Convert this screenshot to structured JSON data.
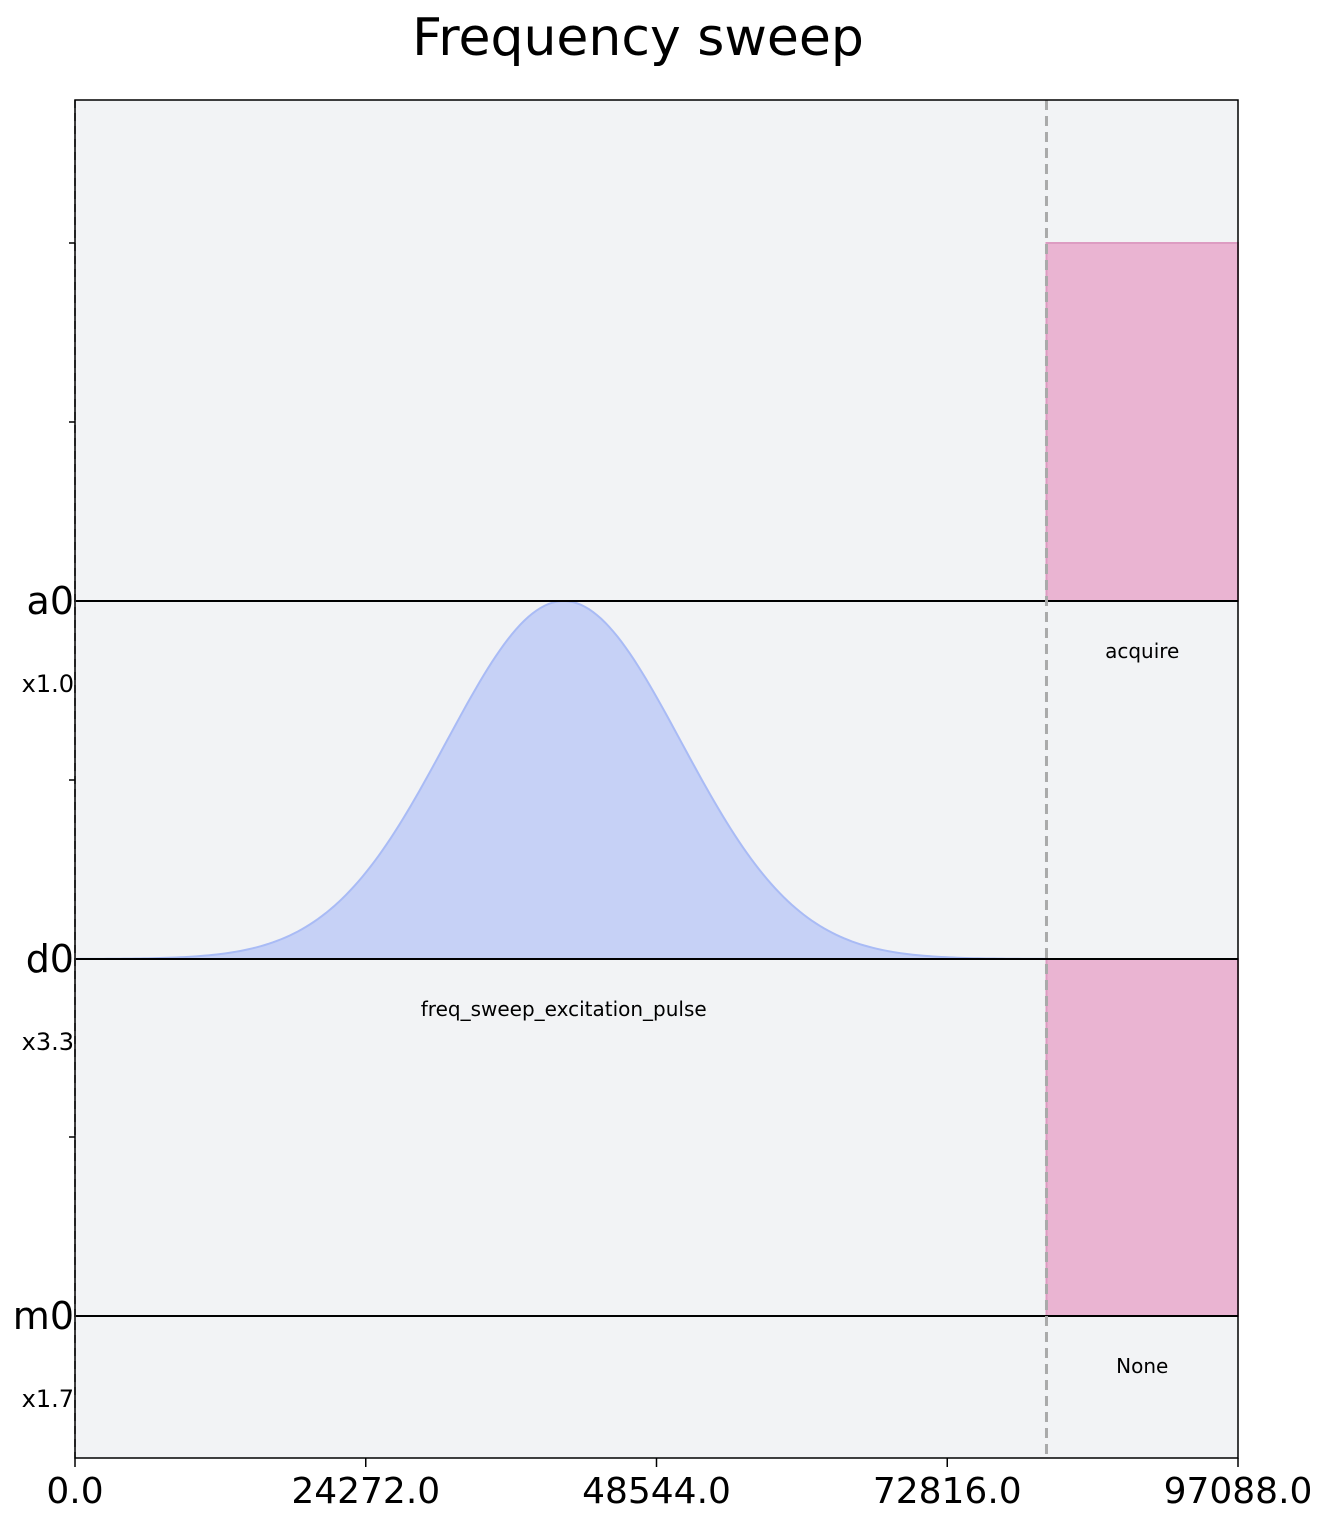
{
  "chart_data": {
    "type": "area",
    "title": "Frequency sweep",
    "xlabel": "",
    "ylabel": "",
    "xlim": [
      0,
      97088
    ],
    "x_ticks": [
      "0.0",
      "24272.0",
      "48544.0",
      "72816.0",
      "97088.0"
    ],
    "x_tick_values": [
      0,
      24272,
      48544,
      72816,
      97088
    ],
    "grid": false,
    "channels": [
      {
        "name": "a0",
        "scale": ""
      },
      {
        "name": "d0",
        "scale": "x1.0"
      },
      {
        "name": "m0",
        "scale": "x3.3"
      },
      {
        "name": "",
        "scale": "x1.7"
      }
    ],
    "markers": [
      {
        "type": "barrier",
        "x": 81100
      }
    ],
    "pulses": [
      {
        "channel": "d0",
        "shape": "gaussian",
        "label": "freq_sweep_excitation_pulse",
        "start": 0,
        "end": 81100,
        "center": 40800,
        "sigma": 9800,
        "amplitude": 1.0,
        "color": "#c6d1f6",
        "edge_color": "#a9bbf5"
      },
      {
        "channel": "a0",
        "shape": "square",
        "label": "acquire",
        "start": 81100,
        "end": 97088,
        "amplitude": 1.0,
        "color": "#eab4d2",
        "edge_color": "#dd9cc2"
      },
      {
        "channel": "m0",
        "shape": "square",
        "label": "None",
        "start": 81100,
        "end": 97088,
        "amplitude": 1.0,
        "color": "#eab4d2",
        "edge_color": "#dd9cc2"
      }
    ],
    "colors": {
      "background": "#f2f3f5",
      "barrier": "#aaaaaa"
    }
  }
}
